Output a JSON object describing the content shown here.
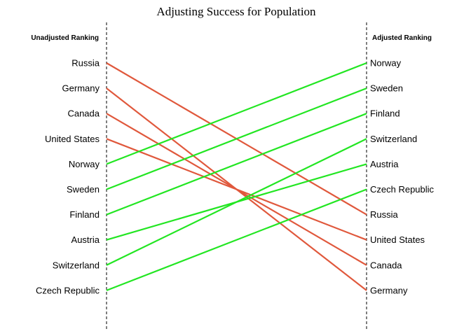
{
  "chart_data": {
    "type": "slope",
    "title": "Adjusting Success for Population",
    "left_label": "Unadjusted Ranking",
    "right_label": "Adjusted Ranking",
    "colors": {
      "down": "#e0583c",
      "up": "#22e622"
    },
    "series": [
      {
        "name": "Russia",
        "left_rank": 1,
        "right_rank": 7
      },
      {
        "name": "Germany",
        "left_rank": 2,
        "right_rank": 10
      },
      {
        "name": "Canada",
        "left_rank": 3,
        "right_rank": 9
      },
      {
        "name": "United States",
        "left_rank": 4,
        "right_rank": 8
      },
      {
        "name": "Norway",
        "left_rank": 5,
        "right_rank": 1
      },
      {
        "name": "Sweden",
        "left_rank": 6,
        "right_rank": 2
      },
      {
        "name": "Finland",
        "left_rank": 7,
        "right_rank": 3
      },
      {
        "name": "Austria",
        "left_rank": 8,
        "right_rank": 5
      },
      {
        "name": "Switzerland",
        "left_rank": 9,
        "right_rank": 4
      },
      {
        "name": "Czech Republic",
        "left_rank": 10,
        "right_rank": 6
      }
    ]
  }
}
